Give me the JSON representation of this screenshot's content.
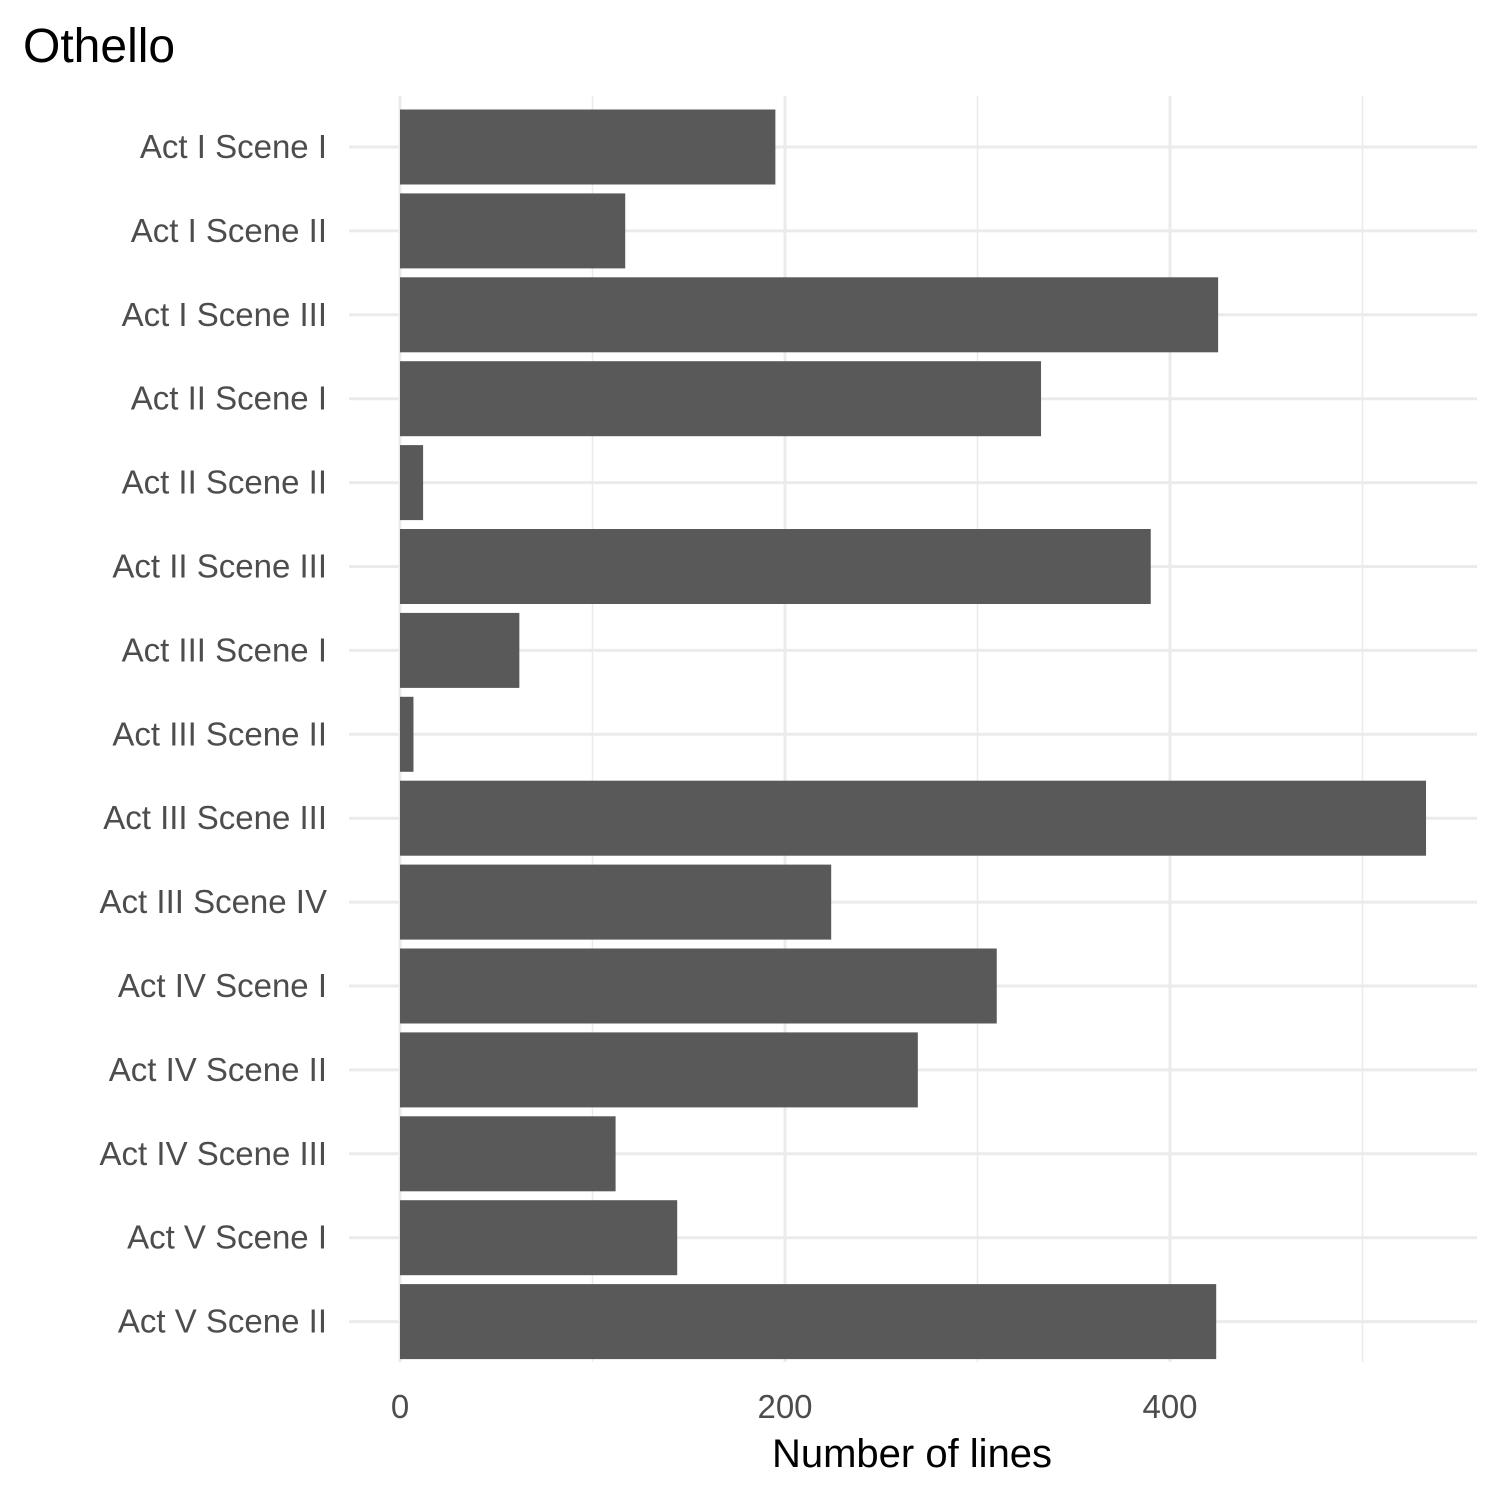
{
  "chart_data": {
    "type": "bar",
    "orientation": "horizontal",
    "title": "Othello",
    "xlabel": "Number of lines",
    "ylabel": "",
    "xlim": [
      0,
      556
    ],
    "xticks": [
      0,
      200,
      400
    ],
    "grid": true,
    "legend": "none",
    "bar_color": "#595959",
    "grid_color": "#ebebeb",
    "categories": [
      "Act I Scene I",
      "Act I Scene II",
      "Act I Scene III",
      "Act II Scene I",
      "Act II Scene II",
      "Act II Scene III",
      "Act III Scene I",
      "Act III Scene II",
      "Act III Scene III",
      "Act III Scene IV",
      "Act IV Scene I",
      "Act IV Scene II",
      "Act IV Scene III",
      "Act V Scene I",
      "Act V Scene II"
    ],
    "values": [
      195,
      117,
      425,
      333,
      12,
      390,
      62,
      7,
      533,
      224,
      310,
      269,
      112,
      144,
      424
    ]
  }
}
